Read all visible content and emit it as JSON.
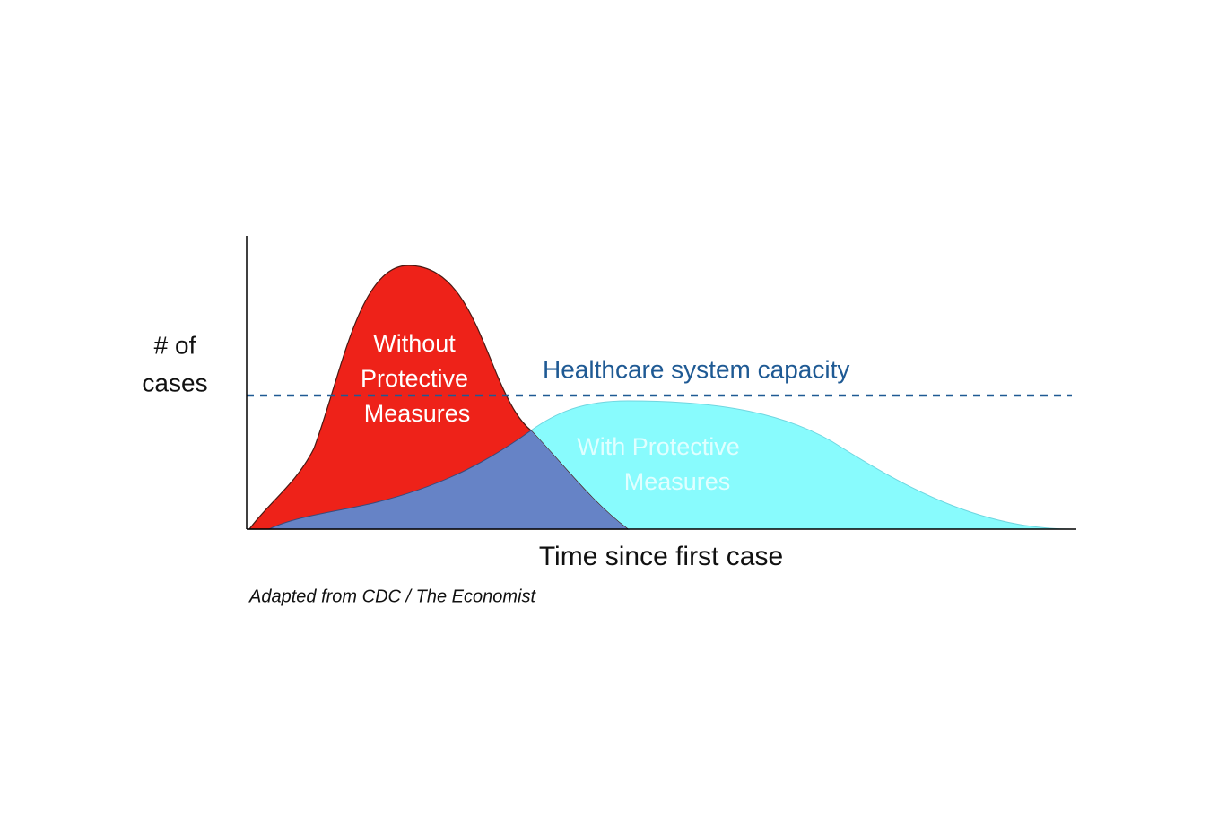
{
  "y_label_lines": [
    "# of",
    "cases"
  ],
  "x_label": "Time since first case",
  "capacity_label": "Healthcare system capacity",
  "without_label_lines": [
    "Without",
    "Protective",
    "Measures"
  ],
  "with_label_lines": [
    "With Protective",
    "Measures"
  ],
  "source": "Adapted from CDC / The Economist"
}
